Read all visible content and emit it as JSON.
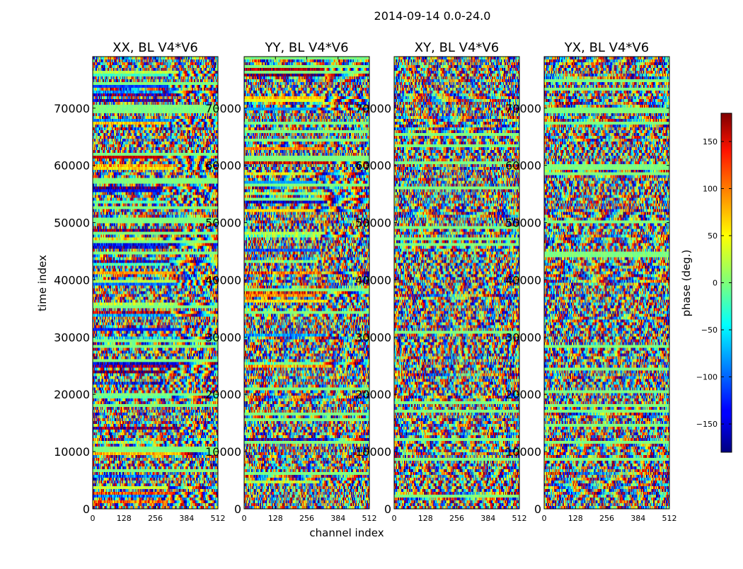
{
  "chart_data": {
    "type": "heatmap",
    "suptitle": "2014-09-14 0.0-24.0",
    "xlabel": "channel index",
    "ylabel": "time index",
    "xlim": [
      0,
      512
    ],
    "ylim": [
      0,
      79000
    ],
    "x_ticks": [
      0,
      128,
      256,
      384,
      512
    ],
    "y_ticks": [
      0,
      10000,
      20000,
      30000,
      40000,
      50000,
      60000,
      70000
    ],
    "colormap": "jet",
    "panels": [
      {
        "title": "XX, BL V4*V6",
        "polarization": "XX",
        "baseline": "V4*V6",
        "show_ylabel": true
      },
      {
        "title": "YY, BL V4*V6",
        "polarization": "YY",
        "baseline": "V4*V6",
        "show_ylabel": false
      },
      {
        "title": "XY, BL V4*V6",
        "polarization": "XY",
        "baseline": "V4*V6",
        "show_ylabel": false
      },
      {
        "title": "YX, BL V4*V6",
        "polarization": "YX",
        "baseline": "V4*V6",
        "show_ylabel": false
      }
    ],
    "colorbar": {
      "label": "phase (deg.)",
      "range": [
        -180,
        180
      ],
      "ticks": [
        -150,
        -100,
        -50,
        0,
        50,
        100,
        150
      ],
      "tick_labels": [
        "−150",
        "−100",
        "−50",
        "0",
        "50",
        "100",
        "150"
      ]
    }
  }
}
